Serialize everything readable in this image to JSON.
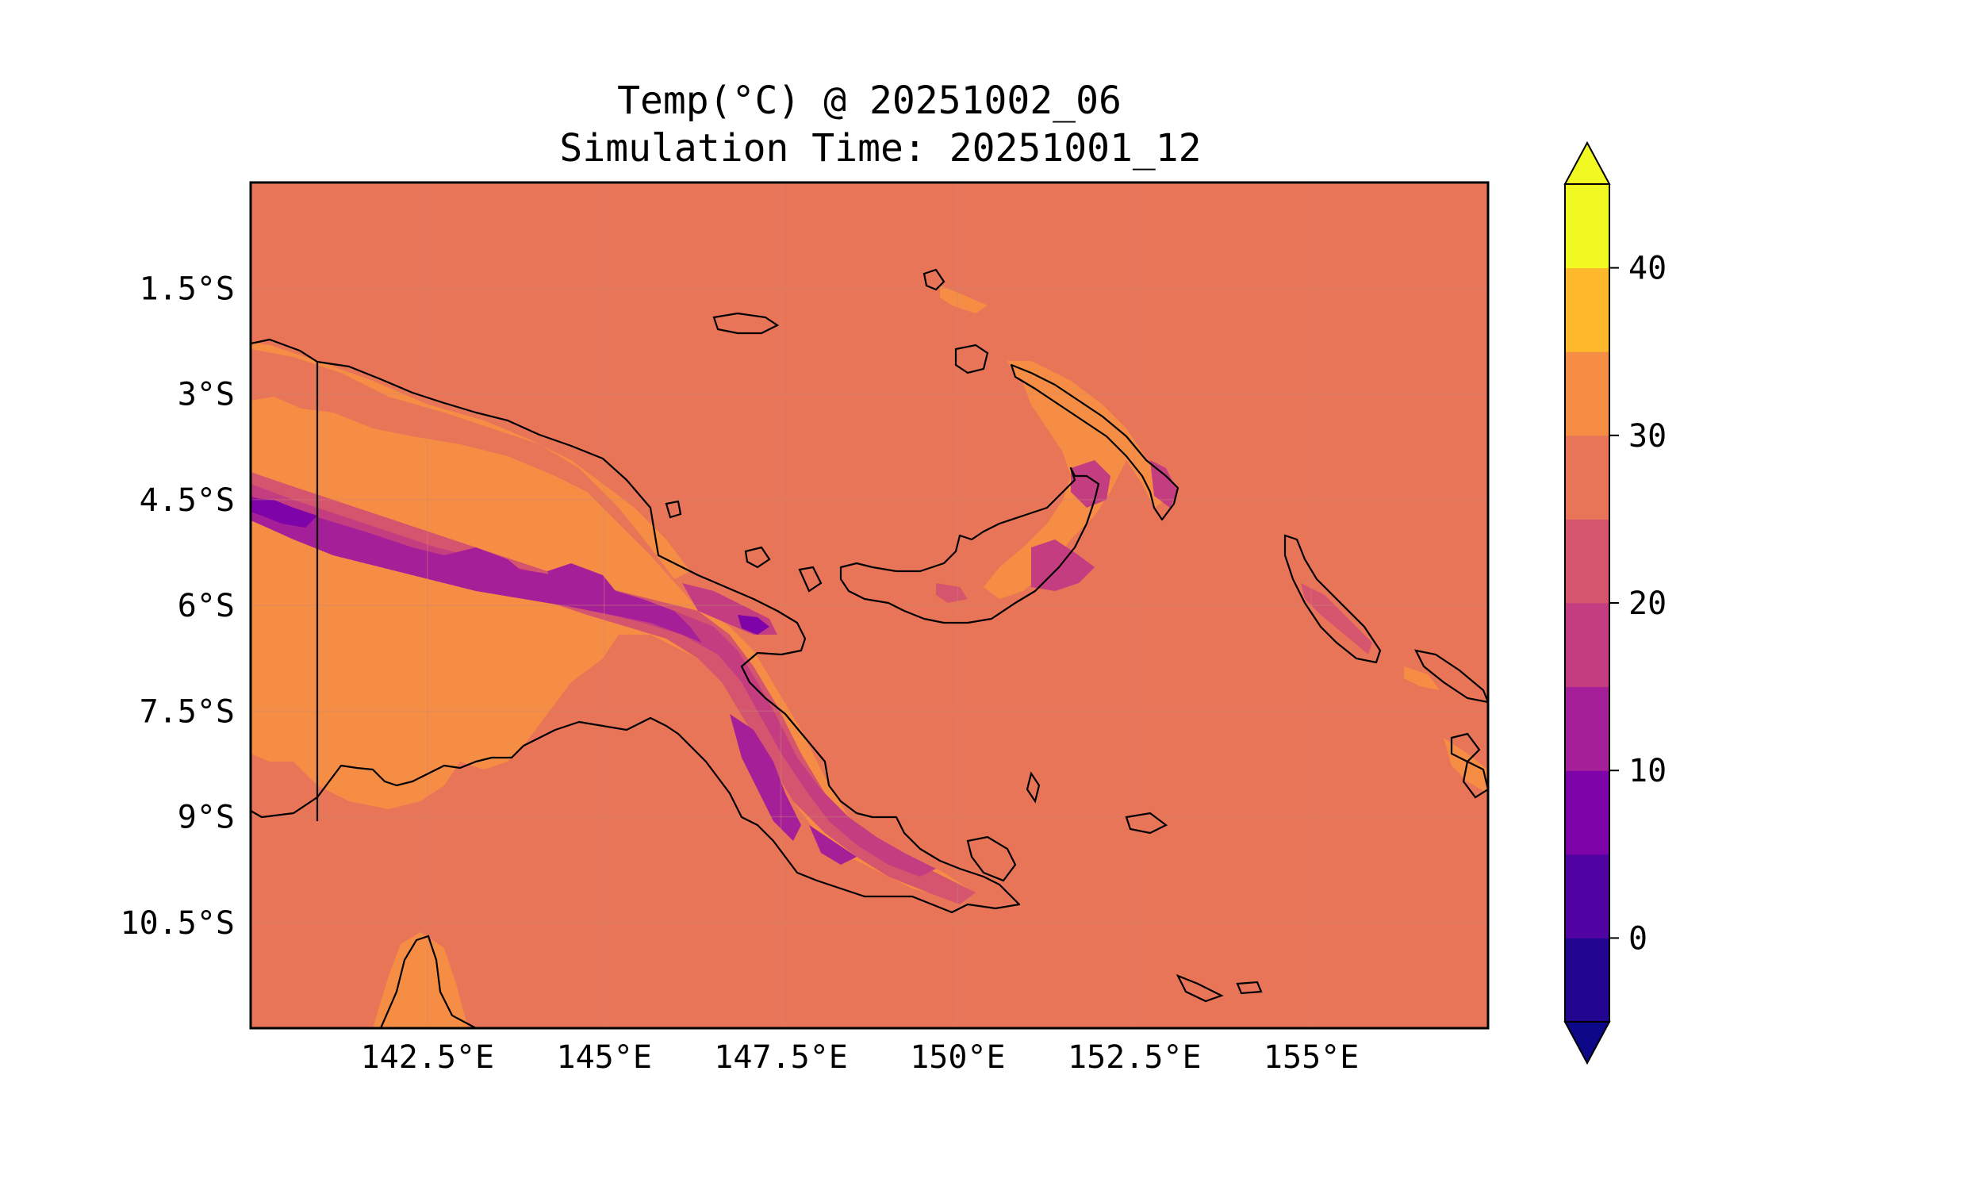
{
  "title_line1": "Temp(°C) @ 20251002_06",
  "title_line2": "Simulation Time: 20251001_12",
  "map": {
    "lon_range": [
      140.0,
      157.5
    ],
    "lat_range": [
      -12.0,
      0.0
    ],
    "lon_ticks": [
      142.5,
      145.0,
      147.5,
      150.0,
      152.5,
      155.0
    ],
    "lon_tick_labels": [
      "142.5°E",
      "145°E",
      "147.5°E",
      "150°E",
      "152.5°E",
      "155°E"
    ],
    "lat_ticks": [
      -1.5,
      -3.0,
      -4.5,
      -6.0,
      -7.5,
      -9.0,
      -10.5
    ],
    "lat_tick_labels": [
      "1.5°S",
      "3°S",
      "4.5°S",
      "6°S",
      "7.5°S",
      "9°S",
      "10.5°S"
    ],
    "gridlines": true,
    "background_color": "#e97558"
  },
  "colorbar": {
    "levels": [
      -5,
      0,
      5,
      10,
      15,
      20,
      25,
      30,
      35,
      40,
      45
    ],
    "tick_values": [
      0,
      10,
      20,
      30,
      40
    ],
    "tick_labels": [
      "0",
      "10",
      "20",
      "30",
      "40"
    ],
    "extend": "both",
    "colors": [
      "#23068f",
      "#5002a2",
      "#7e03a8",
      "#a51f99",
      "#c33d80",
      "#d5546e",
      "#e97558",
      "#f68d45",
      "#feb82b",
      "#f0f921"
    ],
    "under_color": "#0d0887",
    "over_color": "#f0f921"
  }
}
